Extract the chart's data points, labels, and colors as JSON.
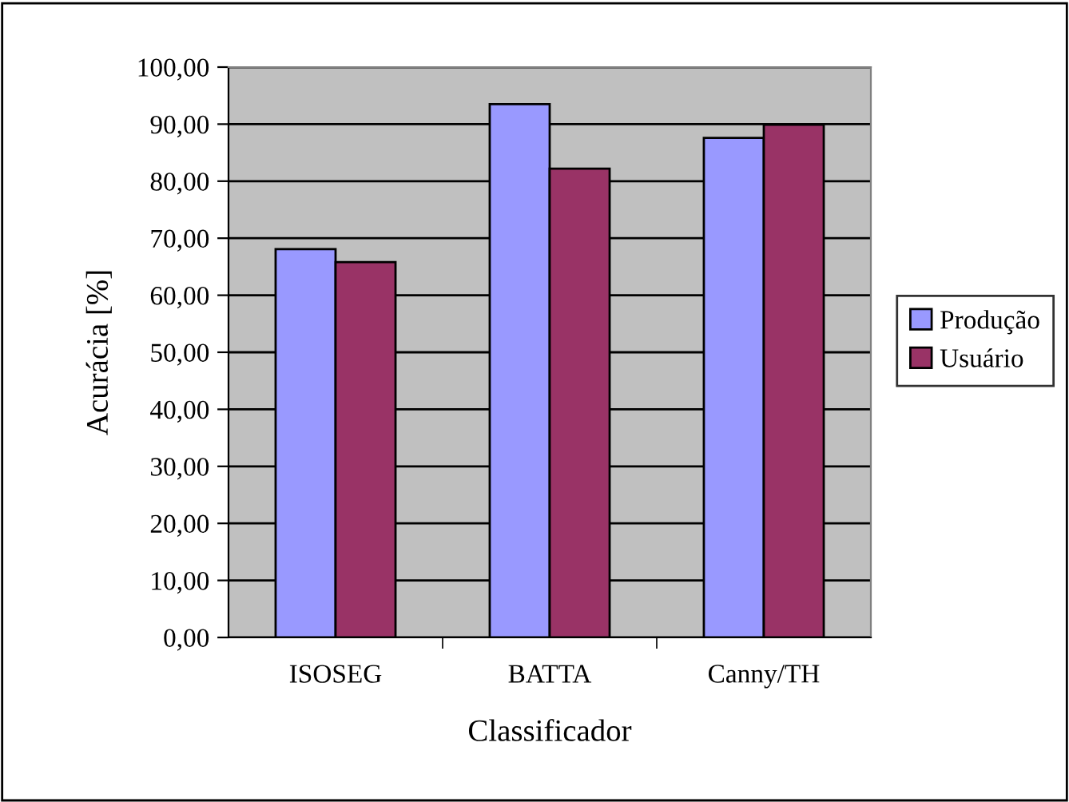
{
  "chart_data": {
    "type": "bar",
    "xlabel": "Classificador",
    "ylabel": "Acurácia [%]",
    "categories": [
      "ISOSEG",
      "BATTA",
      "Canny/TH"
    ],
    "series": [
      {
        "name": "Produção",
        "color": "#9999ff",
        "values": [
          68.1,
          93.5,
          87.6
        ]
      },
      {
        "name": "Usuário",
        "color": "#993366",
        "values": [
          65.8,
          82.2,
          89.9
        ]
      }
    ],
    "ylim": [
      0,
      100
    ],
    "yticks": [
      {
        "value": 0,
        "label": "0,00"
      },
      {
        "value": 10,
        "label": "10,00"
      },
      {
        "value": 20,
        "label": "20,00"
      },
      {
        "value": 30,
        "label": "30,00"
      },
      {
        "value": 40,
        "label": "40,00"
      },
      {
        "value": 50,
        "label": "50,00"
      },
      {
        "value": 60,
        "label": "60,00"
      },
      {
        "value": 70,
        "label": "70,00"
      },
      {
        "value": 80,
        "label": "80,00"
      },
      {
        "value": 90,
        "label": "90,00"
      },
      {
        "value": 100,
        "label": "100,00"
      }
    ],
    "grid": "y",
    "legend": "right"
  }
}
